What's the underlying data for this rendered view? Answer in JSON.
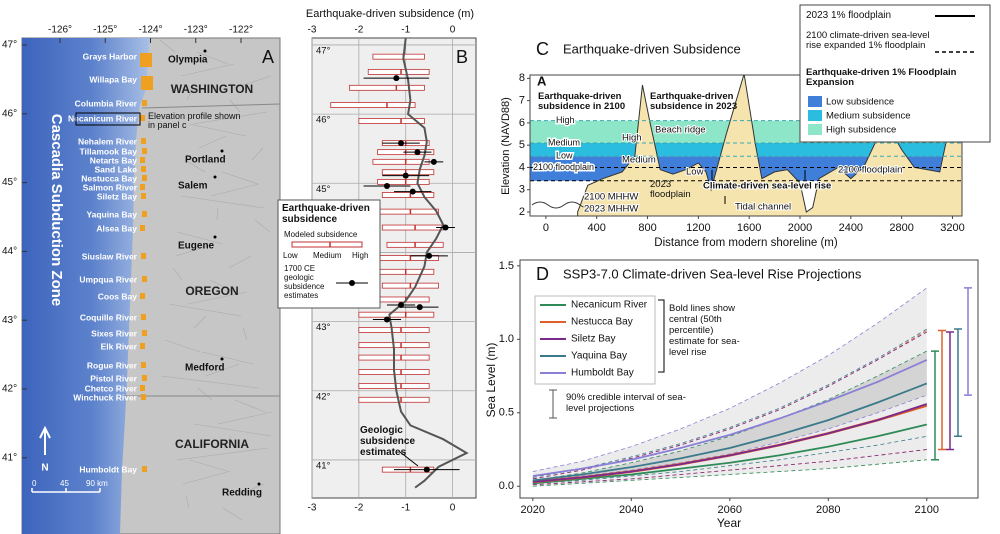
{
  "map": {
    "panel": "A",
    "lon_ticks": [
      {
        "value": -126,
        "label": "-126°"
      },
      {
        "value": -125,
        "label": "-125°"
      },
      {
        "value": -124,
        "label": "-124°"
      },
      {
        "value": -123,
        "label": "-123°"
      },
      {
        "value": -122,
        "label": "-122°"
      }
    ],
    "lat_ticks": [
      {
        "value": 47,
        "label": "47°"
      },
      {
        "value": 46,
        "label": "46°"
      },
      {
        "value": 45,
        "label": "45°"
      },
      {
        "value": 44,
        "label": "44°"
      },
      {
        "value": 43,
        "label": "43°"
      },
      {
        "value": 42,
        "label": "42°"
      },
      {
        "value": 41,
        "label": "41°"
      }
    ],
    "zone": "Cascadia Subduction Zone",
    "states": [
      "WASHINGTON",
      "OREGON",
      "CALIFORNIA"
    ],
    "cities": [
      "Olympia",
      "Portland",
      "Salem",
      "Eugene",
      "Medford",
      "Redding"
    ],
    "estuaries": [
      "Grays Harbor",
      "Willapa Bay",
      "Columbia River",
      "Necanicum River",
      "Nehalem River",
      "Tillamook Bay",
      "Netarts Bay",
      "Sand Lake",
      "Nestucca Bay",
      "Salmon River",
      "Siletz Bay",
      "Yaquina Bay",
      "Alsea Bay",
      "Siuslaw River",
      "Umpqua River",
      "Coos Bay",
      "Coquille River",
      "Sixes River",
      "Elk River",
      "Rogue River",
      "Pistol River",
      "Chetco River",
      "Winchuck River",
      "Humboldt Bay"
    ],
    "profile_note": "Elevation profile shown in panel c",
    "north": "N",
    "scale": [
      "0",
      "45",
      "90 km"
    ]
  },
  "chart_data": [
    {
      "type": "range",
      "panel": "B",
      "title": "Earthquake-driven subsidence (m)",
      "xlim": [
        -3,
        0.5
      ],
      "xticks": [
        -3,
        -2,
        -1,
        0
      ],
      "ylim": [
        40.45,
        47.1
      ],
      "yticks": [
        {
          "value": 47,
          "label": "47°"
        },
        {
          "value": 46,
          "label": "46°"
        },
        {
          "value": 45,
          "label": "45°"
        },
        {
          "value": 44,
          "label": "44°"
        },
        {
          "value": 43,
          "label": "43°"
        },
        {
          "value": 42,
          "label": "42°"
        },
        {
          "value": 41,
          "label": "41°"
        }
      ],
      "modeled": {
        "name": "Modeled subsidence",
        "color": "#c03030",
        "lat": [
          46.83,
          46.61,
          46.38,
          46.13,
          45.9,
          45.58,
          45.45,
          45.31,
          45.16,
          45.02,
          44.83,
          44.59,
          44.36,
          44.11,
          43.92,
          43.72,
          43.52,
          43.32,
          43.1,
          42.88,
          42.66,
          42.48,
          42.27,
          42.07,
          41.87,
          40.86
        ],
        "low": [
          -1.7,
          -1.8,
          -2.2,
          -2.6,
          -2.0,
          -1.5,
          -1.6,
          -1.7,
          -1.5,
          -1.6,
          -1.5,
          -1.6,
          -1.5,
          -1.4,
          -1.7,
          -1.8,
          -1.5,
          -1.9,
          -2.0,
          -2.0,
          -2.0,
          -2.0,
          -2.0,
          -2.0,
          -2.0,
          -1.5
        ],
        "medium": [
          -1.05,
          -1.1,
          -1.2,
          -1.4,
          -1.1,
          -1.0,
          -1.0,
          -1.0,
          -1.0,
          -1.0,
          -0.9,
          -0.9,
          -0.8,
          -0.8,
          -0.9,
          -1.0,
          -0.9,
          -1.0,
          -1.0,
          -1.1,
          -1.1,
          -1.1,
          -1.1,
          -1.1,
          -1.1,
          -0.9
        ],
        "high": [
          -0.6,
          -0.5,
          -0.6,
          -0.8,
          -0.6,
          -0.5,
          -0.4,
          -0.5,
          -0.4,
          -0.5,
          -0.4,
          -0.3,
          -0.2,
          -0.2,
          -0.3,
          -0.4,
          -0.3,
          -0.5,
          -0.4,
          -0.5,
          -0.5,
          -0.5,
          -0.5,
          -0.5,
          -0.5,
          -0.4
        ]
      },
      "geologic": {
        "name": "1700 CE geologic subsidence estimates",
        "color": "#000000",
        "lat": [
          46.52,
          45.58,
          45.45,
          45.31,
          45.11,
          44.96,
          44.88,
          44.36,
          43.95,
          43.24,
          43.21,
          43.03,
          40.86
        ],
        "values": [
          -1.2,
          -1.1,
          -0.75,
          -0.4,
          -1.0,
          -1.4,
          -0.85,
          -0.15,
          -0.5,
          -1.1,
          -0.7,
          -1.4,
          -0.55
        ],
        "errors": [
          0.7,
          0.4,
          0.3,
          0.2,
          0.5,
          0.5,
          0.4,
          0.2,
          0.4,
          0.3,
          0.4,
          0.3,
          0.7
        ]
      },
      "curve": {
        "color": "#555555",
        "x": [
          -1.0,
          -1.05,
          -0.95,
          -0.9,
          -0.95,
          -0.6,
          -0.55,
          -0.6,
          -0.7,
          -0.75,
          -0.6,
          -0.35,
          -0.2,
          -0.35,
          -0.55,
          -0.6,
          -0.8,
          -1.0,
          -1.35,
          -1.3,
          -1.25,
          -1.25,
          -1.2,
          -1.1,
          -0.9,
          -0.2,
          0.3,
          -0.3,
          -0.6,
          -0.8
        ],
        "y": [
          47.1,
          46.8,
          46.5,
          46.2,
          46.0,
          45.8,
          45.6,
          45.4,
          45.2,
          45.0,
          44.8,
          44.6,
          44.4,
          44.2,
          44.0,
          43.8,
          43.5,
          43.3,
          43.1,
          42.9,
          42.6,
          42.3,
          42.0,
          41.7,
          41.5,
          41.3,
          41.1,
          40.9,
          40.7,
          40.6
        ]
      },
      "legend": {
        "title": "Earthquake-driven subsidence",
        "low": "Low",
        "medium": "Medium",
        "high": "High"
      },
      "annotation": "Geologic subsidence estimates"
    },
    {
      "type": "area",
      "panel": "C",
      "title": "Earthquake-driven Subsidence",
      "xlabel": "Distance from modern shoreline (m)",
      "ylabel": "Elevation (NAVD88)",
      "xlim": [
        -125,
        3275
      ],
      "xticks": [
        0,
        400,
        800,
        1200,
        1600,
        2000,
        2400,
        2800,
        3200
      ],
      "ylim": [
        1.82,
        8.15
      ],
      "yticks": [
        2,
        3,
        4,
        5,
        6,
        7,
        8
      ],
      "ends": [
        "A",
        "A’"
      ],
      "profile": {
        "color": "#f6e4ae",
        "x": [
          250,
          330,
          450,
          600,
          700,
          760,
          820,
          900,
          1000,
          1100,
          1200,
          1260,
          1300,
          1420,
          1560,
          1650,
          1700,
          1800,
          1900,
          2000,
          2050,
          2100,
          2150,
          2300,
          2400,
          2500,
          2600,
          2700,
          2800,
          2900,
          3000,
          3100,
          3200,
          3275
        ],
        "y": [
          2.0,
          3.2,
          3.5,
          3.8,
          4.5,
          7.7,
          6.0,
          3.9,
          3.7,
          3.9,
          4.2,
          3.8,
          3.0,
          5.5,
          8.2,
          5.0,
          3.5,
          3.8,
          3.9,
          3.3,
          2.0,
          2.2,
          3.5,
          4.0,
          3.5,
          4.0,
          5.2,
          5.8,
          4.8,
          4.0,
          3.9,
          3.8,
          6.5,
          8.2
        ]
      },
      "levels": {
        "labels": [
          "High",
          "Medium",
          "Low",
          "2100 floodplain"
        ],
        "values": [
          6.1,
          5.1,
          4.5,
          4.0
        ]
      },
      "floodplain_2023": 3.4,
      "legend": {
        "solid": "2023 1% floodplain",
        "dashed": "2100 climate-driven sea-level rise expanded 1% floodplain",
        "title": "Earthquake-driven 1% Floodplain Expansion",
        "entries": [
          "Low subsidence",
          "Medium subsidence",
          "High subsidence"
        ],
        "colors": [
          "#3f7fd9",
          "#2bbde0",
          "#8ee6c8"
        ]
      },
      "annotations": [
        "Earthquake-driven subsidence in 2100",
        "Earthquake-driven subsidence in 2023",
        "High",
        "Medium",
        "Low",
        "Beach ridge",
        "2023 floodplain",
        "Climate-driven sea-level rise",
        "2100 floodplain",
        "2100 MHHW",
        "2023 MHHW",
        "Tidal channel"
      ]
    },
    {
      "type": "line",
      "panel": "D",
      "title": "SSP3-7.0 Climate-driven Sea-level Rise Projections",
      "xlabel": "Year",
      "ylabel": "Sea Level (m)",
      "x": [
        2020,
        2030,
        2040,
        2050,
        2060,
        2070,
        2080,
        2090,
        2100
      ],
      "xlim": [
        2017.4,
        2110.4
      ],
      "xticks": [
        2020,
        2040,
        2060,
        2080,
        2100
      ],
      "ylim": [
        -0.08,
        1.54
      ],
      "yticks": [
        {
          "value": 0,
          "label": "0.0"
        },
        {
          "value": 0.5,
          "label": "0.5"
        },
        {
          "value": 1,
          "label": "1.0"
        },
        {
          "value": 1.5,
          "label": "1.5"
        }
      ],
      "series": [
        {
          "name": "Necanicum River",
          "color": "#2e8b57",
          "values": [
            0.02,
            0.05,
            0.08,
            0.12,
            0.16,
            0.21,
            0.27,
            0.34,
            0.42
          ],
          "low": [
            0.0,
            0.02,
            0.04,
            0.06,
            0.08,
            0.1,
            0.12,
            0.15,
            0.18
          ],
          "high": [
            0.04,
            0.09,
            0.16,
            0.24,
            0.34,
            0.46,
            0.59,
            0.75,
            0.92
          ]
        },
        {
          "name": "Nestucca Bay",
          "color": "#e0602c",
          "values": [
            0.03,
            0.06,
            0.1,
            0.15,
            0.21,
            0.28,
            0.36,
            0.45,
            0.55
          ],
          "low": [
            0.01,
            0.03,
            0.05,
            0.08,
            0.11,
            0.14,
            0.17,
            0.21,
            0.25
          ],
          "high": [
            0.05,
            0.11,
            0.19,
            0.28,
            0.39,
            0.52,
            0.68,
            0.86,
            1.06
          ]
        },
        {
          "name": "Siletz Bay",
          "color": "#7b2a8a",
          "values": [
            0.03,
            0.06,
            0.1,
            0.15,
            0.21,
            0.28,
            0.36,
            0.45,
            0.56
          ],
          "low": [
            0.01,
            0.03,
            0.05,
            0.08,
            0.11,
            0.14,
            0.17,
            0.21,
            0.25
          ],
          "high": [
            0.05,
            0.11,
            0.19,
            0.28,
            0.39,
            0.52,
            0.68,
            0.86,
            1.05
          ]
        },
        {
          "name": "Yaquina Bay",
          "color": "#3a7a8a",
          "values": [
            0.04,
            0.08,
            0.13,
            0.19,
            0.26,
            0.35,
            0.45,
            0.57,
            0.7
          ],
          "low": [
            0.02,
            0.04,
            0.07,
            0.1,
            0.14,
            0.18,
            0.23,
            0.28,
            0.34
          ],
          "high": [
            0.06,
            0.12,
            0.2,
            0.29,
            0.4,
            0.53,
            0.69,
            0.87,
            1.07
          ]
        },
        {
          "name": "Humboldt Bay",
          "color": "#8a7fd6",
          "values": [
            0.07,
            0.12,
            0.18,
            0.26,
            0.35,
            0.46,
            0.58,
            0.71,
            0.86
          ],
          "low": [
            0.04,
            0.07,
            0.11,
            0.16,
            0.22,
            0.3,
            0.39,
            0.5,
            0.62
          ],
          "high": [
            0.1,
            0.17,
            0.27,
            0.39,
            0.53,
            0.7,
            0.89,
            1.11,
            1.35
          ]
        }
      ],
      "note": "Bold lines show central (50th percentile) estimate for sea-level rise",
      "interval_note": "90% credible interval of sea-level projections"
    }
  ]
}
